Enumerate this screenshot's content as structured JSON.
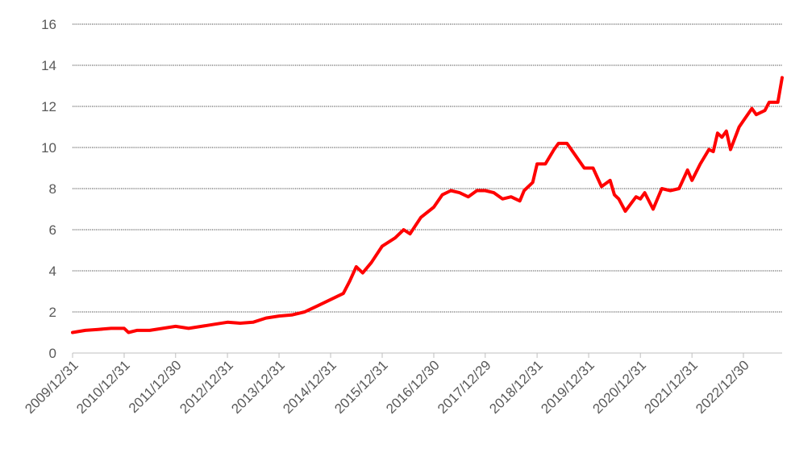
{
  "chart_data": {
    "type": "line",
    "title": "",
    "xlabel": "",
    "ylabel": "",
    "ylim": [
      0,
      16
    ],
    "y_ticks": [
      0,
      2,
      4,
      6,
      8,
      10,
      12,
      14,
      16
    ],
    "x_range": [
      "2009-12-31",
      "2023-09-30"
    ],
    "x_tick_labels": [
      {
        "date": "2009-12-31",
        "label": "2009/12/31"
      },
      {
        "date": "2010-12-31",
        "label": "2010/12/31"
      },
      {
        "date": "2011-12-30",
        "label": "2011/12/30"
      },
      {
        "date": "2012-12-31",
        "label": "2012/12/31"
      },
      {
        "date": "2013-12-31",
        "label": "2013/12/31"
      },
      {
        "date": "2014-12-31",
        "label": "2014/12/31"
      },
      {
        "date": "2015-12-31",
        "label": "2015/12/31"
      },
      {
        "date": "2016-12-30",
        "label": "2016/12/30"
      },
      {
        "date": "2017-12-29",
        "label": "2017/12/29"
      },
      {
        "date": "2018-12-31",
        "label": "2018/12/31"
      },
      {
        "date": "2019-12-31",
        "label": "2019/12/31"
      },
      {
        "date": "2020-12-31",
        "label": "2020/12/31"
      },
      {
        "date": "2021-12-31",
        "label": "2021/12/31"
      },
      {
        "date": "2022-12-30",
        "label": "2022/12/30"
      }
    ],
    "grid": true,
    "legend": "none",
    "line_color": "#ff0000",
    "series": [
      {
        "points": [
          [
            "2009-12-31",
            1.0
          ],
          [
            "2010-03-31",
            1.1
          ],
          [
            "2010-06-30",
            1.15
          ],
          [
            "2010-09-30",
            1.2
          ],
          [
            "2010-12-31",
            1.2
          ],
          [
            "2011-01-31",
            1.0
          ],
          [
            "2011-03-31",
            1.1
          ],
          [
            "2011-06-30",
            1.1
          ],
          [
            "2011-09-30",
            1.2
          ],
          [
            "2011-12-30",
            1.3
          ],
          [
            "2012-03-31",
            1.2
          ],
          [
            "2012-06-30",
            1.3
          ],
          [
            "2012-09-30",
            1.4
          ],
          [
            "2012-12-31",
            1.5
          ],
          [
            "2013-03-31",
            1.45
          ],
          [
            "2013-06-30",
            1.5
          ],
          [
            "2013-09-30",
            1.7
          ],
          [
            "2013-12-31",
            1.8
          ],
          [
            "2014-03-31",
            1.85
          ],
          [
            "2014-06-30",
            2.0
          ],
          [
            "2014-09-30",
            2.3
          ],
          [
            "2014-12-31",
            2.6
          ],
          [
            "2015-03-31",
            2.9
          ],
          [
            "2015-05-15",
            3.5
          ],
          [
            "2015-06-30",
            4.2
          ],
          [
            "2015-08-15",
            3.9
          ],
          [
            "2015-10-15",
            4.4
          ],
          [
            "2015-12-31",
            5.2
          ],
          [
            "2016-03-31",
            5.6
          ],
          [
            "2016-05-31",
            6.0
          ],
          [
            "2016-07-15",
            5.8
          ],
          [
            "2016-09-30",
            6.6
          ],
          [
            "2016-12-30",
            7.1
          ],
          [
            "2017-02-28",
            7.7
          ],
          [
            "2017-04-30",
            7.9
          ],
          [
            "2017-06-30",
            7.8
          ],
          [
            "2017-08-31",
            7.6
          ],
          [
            "2017-10-31",
            7.9
          ],
          [
            "2017-12-29",
            7.9
          ],
          [
            "2018-02-28",
            7.8
          ],
          [
            "2018-04-30",
            7.5
          ],
          [
            "2018-06-30",
            7.6
          ],
          [
            "2018-08-31",
            7.4
          ],
          [
            "2018-09-30",
            7.9
          ],
          [
            "2018-11-30",
            8.3
          ],
          [
            "2018-12-31",
            9.2
          ],
          [
            "2019-02-28",
            9.2
          ],
          [
            "2019-04-30",
            9.9
          ],
          [
            "2019-05-31",
            10.2
          ],
          [
            "2019-07-31",
            10.2
          ],
          [
            "2019-09-30",
            9.6
          ],
          [
            "2019-11-30",
            9.0
          ],
          [
            "2020-01-31",
            9.0
          ],
          [
            "2020-03-31",
            8.1
          ],
          [
            "2020-05-31",
            8.4
          ],
          [
            "2020-06-30",
            7.7
          ],
          [
            "2020-07-31",
            7.5
          ],
          [
            "2020-09-15",
            6.9
          ],
          [
            "2020-11-30",
            7.6
          ],
          [
            "2020-12-31",
            7.5
          ],
          [
            "2021-01-31",
            7.8
          ],
          [
            "2021-03-31",
            7.0
          ],
          [
            "2021-05-31",
            8.0
          ],
          [
            "2021-07-31",
            7.9
          ],
          [
            "2021-09-30",
            8.0
          ],
          [
            "2021-11-30",
            8.9
          ],
          [
            "2021-12-31",
            8.4
          ],
          [
            "2022-02-28",
            9.2
          ],
          [
            "2022-04-30",
            9.9
          ],
          [
            "2022-05-31",
            9.8
          ],
          [
            "2022-06-30",
            10.7
          ],
          [
            "2022-07-31",
            10.5
          ],
          [
            "2022-08-31",
            10.8
          ],
          [
            "2022-09-30",
            9.9
          ],
          [
            "2022-11-30",
            11.0
          ],
          [
            "2022-12-30",
            11.3
          ],
          [
            "2023-02-28",
            11.9
          ],
          [
            "2023-03-31",
            11.6
          ],
          [
            "2023-05-31",
            11.8
          ],
          [
            "2023-06-30",
            12.2
          ],
          [
            "2023-08-31",
            12.2
          ],
          [
            "2023-09-30",
            13.4
          ]
        ]
      }
    ]
  }
}
